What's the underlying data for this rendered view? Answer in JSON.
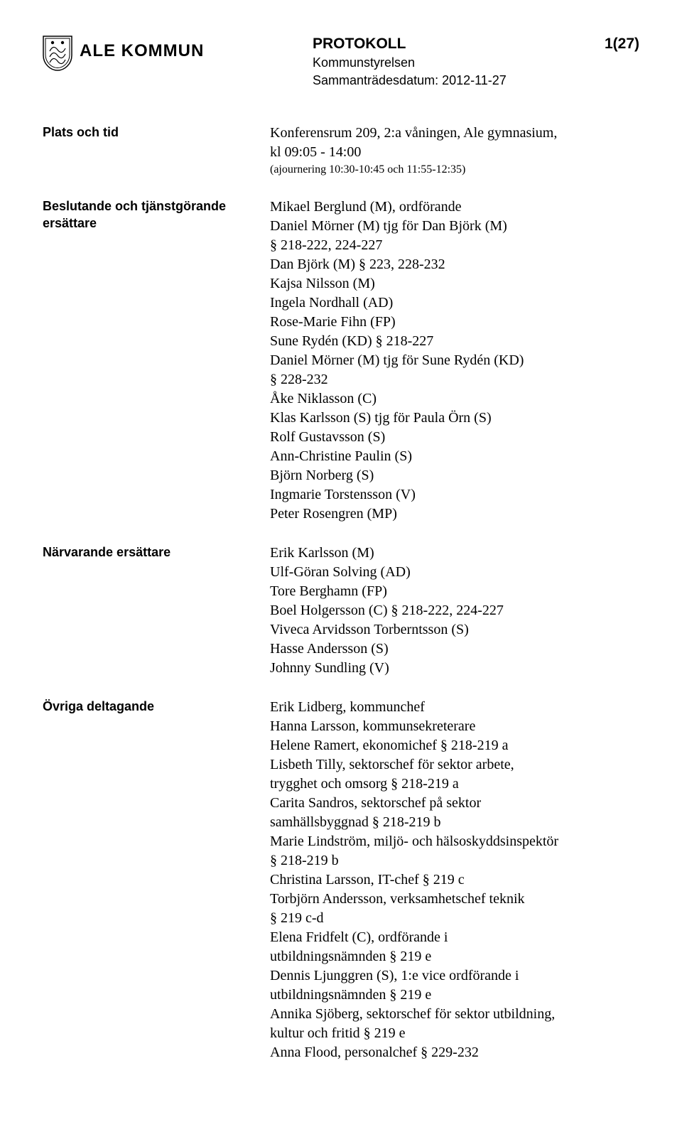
{
  "header": {
    "org_name": "ALE KOMMUN",
    "doc_title": "PROTOKOLL",
    "page_num": "1(27)",
    "committee": "Kommunstyrelsen",
    "meeting_date_label": "Sammanträdesdatum: 2012-11-27"
  },
  "sections": [
    {
      "label": "Plats och tid",
      "lines": [
        "Konferensrum 209, 2:a våningen, Ale gymnasium,",
        "kl 09:05 - 14:00"
      ],
      "small_lines": [
        "(ajournering 10:30-10:45 och 11:55-12:35)"
      ]
    },
    {
      "label": "Beslutande och tjänstgörande ersättare",
      "lines": [
        "Mikael Berglund (M), ordförande",
        "Daniel Mörner (M) tjg för Dan Björk (M)",
        "§ 218-222, 224-227",
        "Dan Björk (M) § 223, 228-232",
        "Kajsa Nilsson (M)",
        "Ingela Nordhall (AD)",
        "Rose-Marie Fihn (FP)",
        "Sune Rydén (KD) § 218-227",
        "Daniel Mörner (M) tjg för Sune Rydén (KD)",
        "§ 228-232",
        "Åke Niklasson (C)",
        "Klas Karlsson (S) tjg för Paula Örn (S)",
        "Rolf Gustavsson (S)",
        "Ann-Christine Paulin (S)",
        "Björn Norberg (S)",
        "Ingmarie Torstensson (V)",
        "Peter Rosengren (MP)"
      ]
    },
    {
      "label": "Närvarande ersättare",
      "lines": [
        "Erik Karlsson (M)",
        "Ulf-Göran Solving (AD)",
        "Tore Berghamn (FP)",
        "Boel Holgersson (C) § 218-222, 224-227",
        "Viveca Arvidsson Torberntsson (S)",
        "Hasse Andersson (S)",
        "Johnny Sundling (V)"
      ]
    },
    {
      "label": "Övriga deltagande",
      "lines": [
        "Erik Lidberg, kommunchef",
        "Hanna Larsson, kommunsekreterare",
        "Helene Ramert, ekonomichef § 218-219 a",
        "Lisbeth Tilly, sektorschef för sektor arbete,",
        "trygghet och omsorg § 218-219 a",
        "Carita Sandros, sektorschef på sektor",
        "samhällsbyggnad § 218-219 b",
        "Marie Lindström, miljö- och hälsoskyddsinspektör",
        "§ 218-219 b",
        "Christina Larsson, IT-chef § 219 c",
        "Torbjörn Andersson, verksamhetschef teknik",
        "§ 219 c-d",
        "Elena Fridfelt (C), ordförande i",
        "utbildningsnämnden § 219 e",
        "Dennis Ljunggren (S), 1:e vice ordförande i",
        "utbildningsnämnden § 219 e",
        "Annika Sjöberg, sektorschef för sektor utbildning,",
        "kultur och fritid § 219 e",
        "Anna Flood, personalchef § 229-232"
      ]
    }
  ]
}
